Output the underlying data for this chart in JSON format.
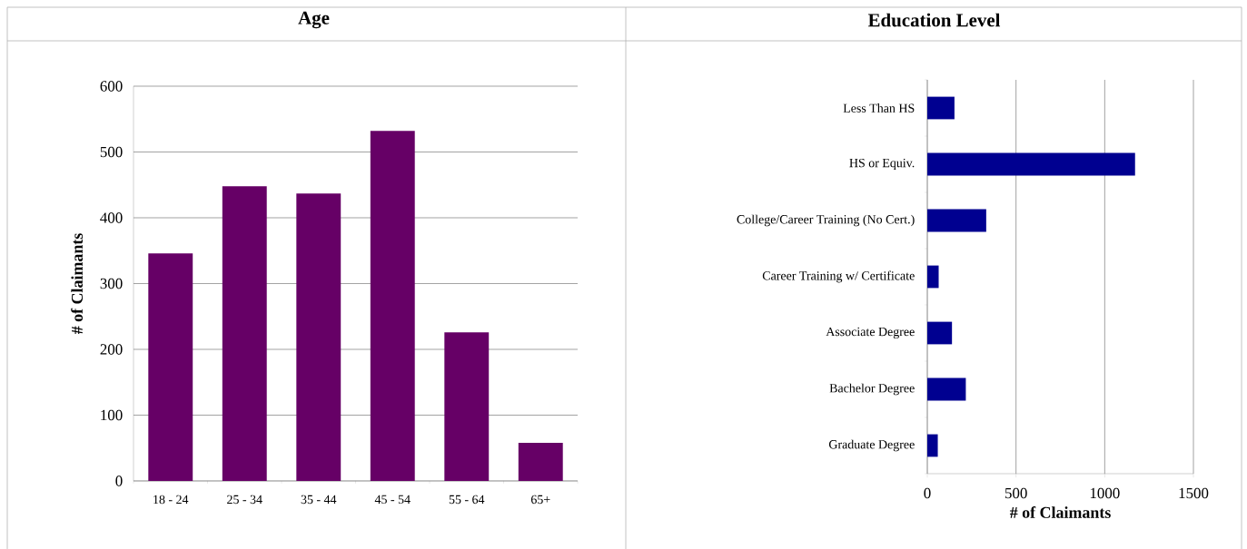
{
  "chart_data": [
    {
      "type": "bar",
      "title": "Age",
      "ylabel": "# of Claimants",
      "categories": [
        "18 - 24",
        "25 - 34",
        "35 - 44",
        "45 - 54",
        "55 - 64",
        "65+"
      ],
      "values": [
        346,
        448,
        437,
        532,
        226,
        58
      ],
      "color": "#660066",
      "ylim": [
        0,
        600
      ],
      "yticks": [
        0,
        100,
        200,
        300,
        400,
        500,
        600
      ],
      "grid": "y"
    },
    {
      "type": "bar",
      "orientation": "horizontal",
      "title": "Education Level",
      "xlabel": "# of Claimants",
      "categories": [
        "Less Than HS",
        "HS or Equiv.",
        "College/Career Training (No Cert.)",
        "Career Training w/ Certificate",
        "Associate Degree",
        "Bachelor Degree",
        "Graduate Degree"
      ],
      "values": [
        153,
        1171,
        332,
        64,
        139,
        217,
        59
      ],
      "color": "#000090",
      "xlim": [
        0,
        1500
      ],
      "xticks": [
        0,
        500,
        1000,
        1500
      ],
      "grid": "x"
    }
  ]
}
